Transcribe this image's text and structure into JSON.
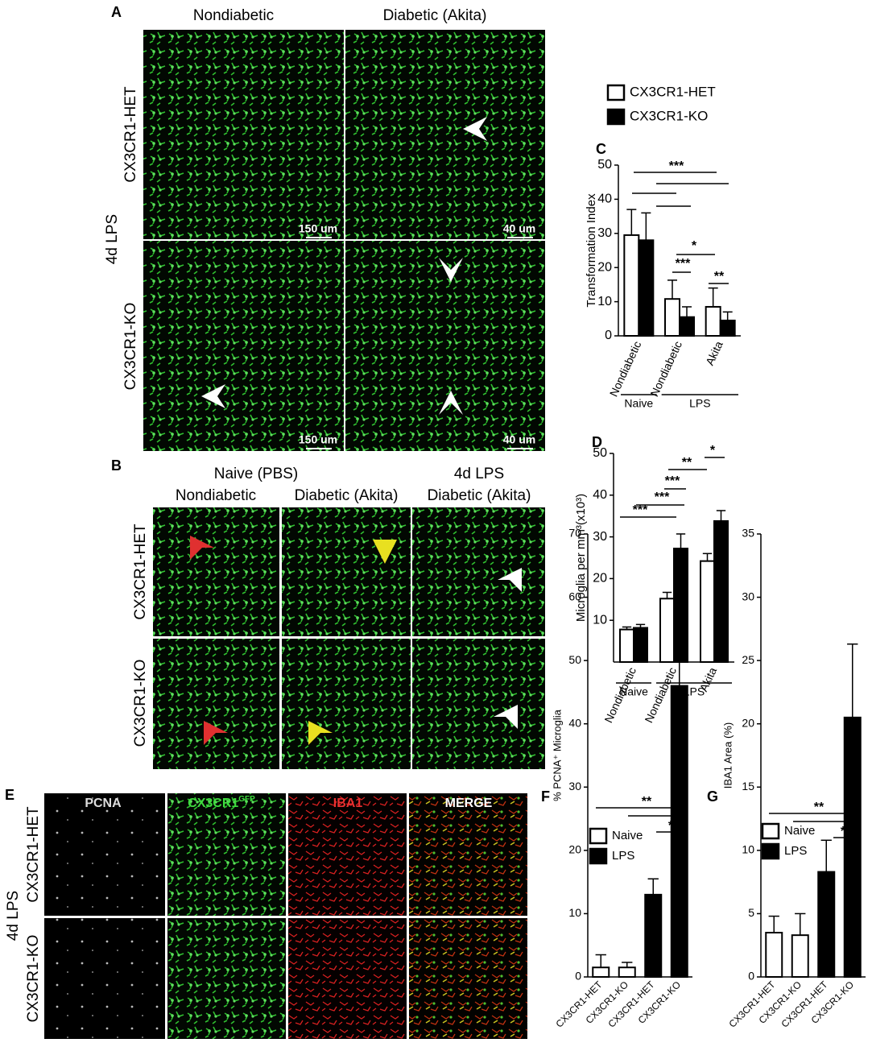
{
  "figure": {
    "panel_labels": [
      "A",
      "B",
      "C",
      "D",
      "E",
      "F",
      "G"
    ],
    "a": {
      "columns": [
        "Nondiabetic",
        "Diabetic (Akita)"
      ],
      "rows": [
        "CX3CR1-HET",
        "CX3CR1-KO"
      ],
      "side": "4d LPS",
      "scale_bars": [
        "150 um",
        "40 um",
        "150 um",
        "40 um"
      ]
    },
    "b": {
      "column_groups": [
        "Naive (PBS)",
        "4d LPS"
      ],
      "columns": [
        "Nondiabetic",
        "Diabetic (Akita)",
        "Diabetic (Akita)"
      ],
      "rows": [
        "CX3CR1-HET",
        "CX3CR1-KO"
      ]
    },
    "e": {
      "columns": [
        "PCNA",
        "CX3CR1",
        "IBA1",
        "MERGE"
      ],
      "superscript": "GFP",
      "rows": [
        "CX3CR1-HET",
        "CX3CR1-KO"
      ],
      "side": "4d LPS"
    }
  },
  "chart_data": [
    {
      "type": "bar",
      "y_label": "Transformation Index",
      "categories": [
        "Nondiabetic",
        "Nondiabetic",
        "Akita"
      ],
      "groups": [
        "Naive",
        "LPS"
      ],
      "ylim": [
        0,
        50
      ],
      "yticks": [
        0,
        10,
        20,
        30,
        40,
        50
      ],
      "series": [
        {
          "name": "CX3CR1-HET",
          "color": "#ffffff",
          "values": [
            29.5,
            10.8,
            8.5
          ],
          "errors": [
            7.5,
            5.5,
            5.5
          ]
        },
        {
          "name": "CX3CR1-KO",
          "color": "#000000",
          "values": [
            28,
            5.5,
            4.5
          ],
          "errors": [
            8,
            3,
            2.5
          ]
        }
      ],
      "annotations": [
        "***",
        "*",
        "***",
        "**"
      ]
    },
    {
      "type": "bar",
      "y_label": "Microglia per mm³(x10³)",
      "categories": [
        "Nondiabetic",
        "Nondiabetic",
        "Akita"
      ],
      "groups": [
        "Naive",
        "LPS"
      ],
      "ylim": [
        0,
        50
      ],
      "yticks": [
        10,
        20,
        30,
        40,
        50
      ],
      "series": [
        {
          "color": "#ffffff",
          "values": [
            7.8,
            15.2,
            24.2
          ],
          "errors": [
            0.6,
            1.5,
            1.8
          ]
        },
        {
          "color": "#000000",
          "values": [
            8.2,
            27.2,
            33.8
          ],
          "errors": [
            0.8,
            3.5,
            2.5
          ]
        }
      ],
      "annotations": [
        "***",
        "***",
        "***",
        "**",
        "*"
      ]
    },
    {
      "type": "bar",
      "y_label": "% PCNA⁺ Microglia",
      "categories": [
        "CX3CR1-HET",
        "CX3CR1-KO",
        "CX3CR1-HET",
        "CX3CR1-KO"
      ],
      "ylim": [
        0,
        70
      ],
      "yticks": [
        0,
        10,
        20,
        30,
        40,
        50,
        60,
        70
      ],
      "series": [
        {
          "name": "Naive",
          "color": "#ffffff",
          "values": [
            1.5,
            1.5,
            null,
            null
          ],
          "errors": [
            2,
            0.8,
            null,
            null
          ]
        },
        {
          "name": "LPS",
          "color": "#000000",
          "values": [
            null,
            null,
            13,
            46
          ],
          "errors": [
            null,
            null,
            2.5,
            7
          ]
        }
      ],
      "annotations": [
        "**",
        "*"
      ]
    },
    {
      "type": "bar",
      "y_label": "IBA1 Area (%)",
      "categories": [
        "CX3CR1-HET",
        "CX3CR1-KO",
        "CX3CR1-HET",
        "CX3CR1-KO"
      ],
      "ylim": [
        0,
        35
      ],
      "yticks": [
        0,
        5,
        10,
        15,
        20,
        25,
        30,
        35
      ],
      "series": [
        {
          "name": "Naive",
          "color": "#ffffff",
          "values": [
            3.5,
            3.3,
            null,
            null
          ],
          "errors": [
            1.3,
            1.7,
            null,
            null
          ]
        },
        {
          "name": "LPS",
          "color": "#000000",
          "values": [
            null,
            null,
            8.3,
            20.5
          ],
          "errors": [
            null,
            null,
            2.5,
            5.8
          ]
        }
      ],
      "annotations": [
        "**",
        "*"
      ]
    }
  ]
}
